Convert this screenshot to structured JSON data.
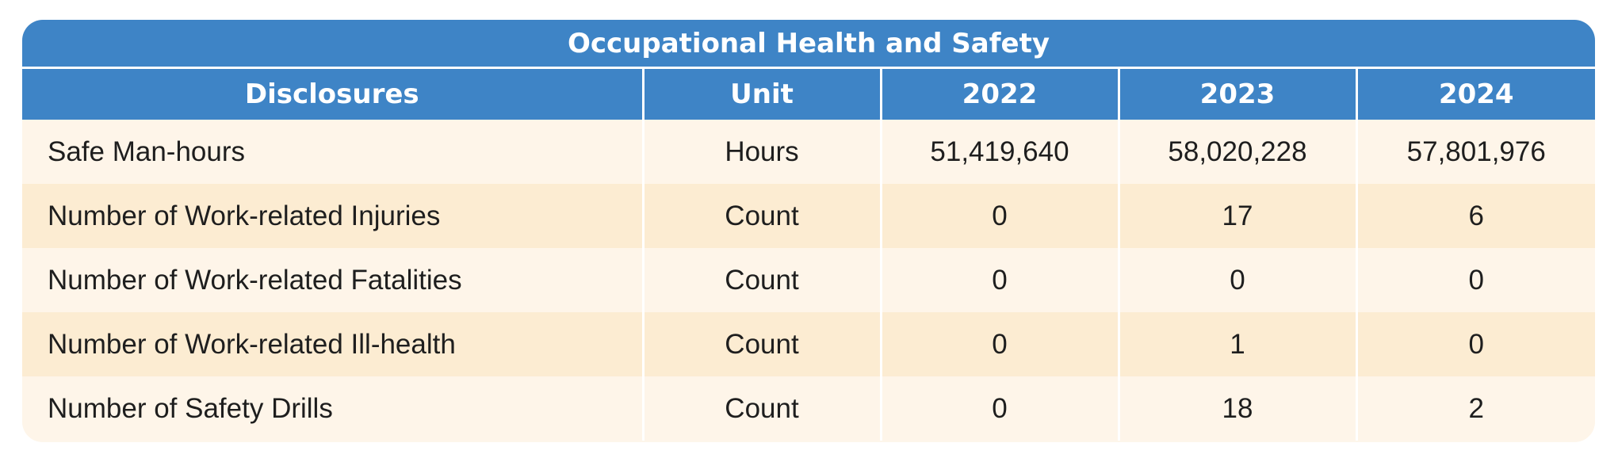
{
  "table": {
    "title": "Occupational Health and Safety",
    "headers": [
      "Disclosures",
      "Unit",
      "2022",
      "2023",
      "2024"
    ],
    "rows": [
      [
        "Safe Man-hours",
        "Hours",
        "51,419,640",
        "58,020,228",
        "57,801,976"
      ],
      [
        "Number of Work-related Injuries",
        "Count",
        "0",
        "17",
        "6"
      ],
      [
        "Number of Work-related Fatalities",
        "Count",
        "0",
        "0",
        "0"
      ],
      [
        "Number of Work-related Ill-health",
        "Count",
        "0",
        "1",
        "0"
      ],
      [
        "Number of Safety Drills",
        "Count",
        "0",
        "18",
        "2"
      ]
    ]
  },
  "colors": {
    "header_blue": "#3e84c6",
    "row_light": "#fef5e9",
    "row_dark": "#fcecd2"
  }
}
